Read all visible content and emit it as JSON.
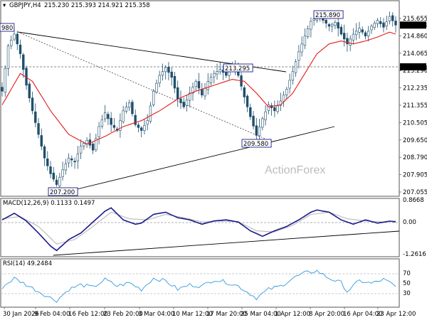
{
  "header": {
    "symbol": "GBPJPY,H4",
    "ohlc": "215.230 215.393 214.921 215.358"
  },
  "watermark": "ActionForex",
  "colors": {
    "candle": "#1f4e6b",
    "sma": "#e31b1b",
    "macd": "#1a1a8c",
    "signal": "#b8b8b8",
    "rsi": "#3399dd",
    "trend": "#000000",
    "frame": "#555555"
  },
  "chart_data": [
    {
      "type": "candlestick",
      "panel": "price",
      "ylim": [
        206.8,
        216.2
      ],
      "y_ticks": [
        "215.655",
        "214.860",
        "214.065",
        "213.290",
        "212.235",
        "211.355",
        "210.505",
        "209.650",
        "208.790",
        "207.905",
        "207.055"
      ],
      "price_label": "215.358",
      "hline_label": "213.290",
      "hline_value": 213.29,
      "x_labels": [
        "30 Jan 2026",
        "9 Feb 04:00",
        "16 Feb 12:00",
        "23 Feb 20:00",
        "3 Mar 04:00",
        "10 Mar 12:00",
        "17 Mar 20:00",
        "25 Mar 04:00",
        "1 Apr 12:00",
        "8 Apr 20:00",
        "16 Apr 04:00",
        "23 Apr 12:00"
      ],
      "annotations": [
        {
          "text": "980",
          "price": 214.98
        },
        {
          "text": "207.200",
          "price": 207.2
        },
        {
          "text": "213.295",
          "price": 213.295
        },
        {
          "text": "209.580",
          "price": 209.58
        },
        {
          "text": "215.890",
          "price": 215.89
        }
      ],
      "anchors": [
        [
          0,
          212.0
        ],
        [
          2,
          214.3
        ],
        [
          4,
          214.9
        ],
        [
          6,
          213.9
        ],
        [
          8,
          212.3
        ],
        [
          10,
          211.0
        ],
        [
          12,
          209.8
        ],
        [
          14,
          208.6
        ],
        [
          16,
          207.8
        ],
        [
          18,
          207.25
        ],
        [
          20,
          208.0
        ],
        [
          22,
          208.6
        ],
        [
          24,
          208.4
        ],
        [
          26,
          209.2
        ],
        [
          28,
          209.5
        ],
        [
          30,
          209.0
        ],
        [
          32,
          210.2
        ],
        [
          34,
          210.9
        ],
        [
          36,
          210.3
        ],
        [
          38,
          210.0
        ],
        [
          40,
          211.0
        ],
        [
          42,
          211.4
        ],
        [
          44,
          210.3
        ],
        [
          46,
          210.0
        ],
        [
          48,
          210.5
        ],
        [
          50,
          212.0
        ],
        [
          52,
          212.8
        ],
        [
          54,
          213.2
        ],
        [
          56,
          212.7
        ],
        [
          58,
          211.6
        ],
        [
          60,
          211.2
        ],
        [
          62,
          211.9
        ],
        [
          64,
          212.5
        ],
        [
          66,
          211.8
        ],
        [
          68,
          212.5
        ],
        [
          70,
          212.9
        ],
        [
          72,
          213.1
        ],
        [
          74,
          212.8
        ],
        [
          76,
          213.3
        ],
        [
          78,
          212.8
        ],
        [
          80,
          211.7
        ],
        [
          82,
          210.7
        ],
        [
          84,
          209.75
        ],
        [
          86,
          210.6
        ],
        [
          88,
          211.3
        ],
        [
          90,
          211.0
        ],
        [
          92,
          211.5
        ],
        [
          94,
          212.1
        ],
        [
          96,
          213.0
        ],
        [
          98,
          214.0
        ],
        [
          100,
          214.8
        ],
        [
          102,
          215.55
        ],
        [
          104,
          215.8
        ],
        [
          106,
          215.6
        ],
        [
          108,
          215.3
        ],
        [
          110,
          215.5
        ],
        [
          112,
          214.9
        ],
        [
          114,
          214.4
        ],
        [
          116,
          214.9
        ],
        [
          118,
          215.2
        ],
        [
          120,
          214.8
        ],
        [
          122,
          215.3
        ],
        [
          124,
          215.6
        ],
        [
          126,
          215.25
        ],
        [
          128,
          215.8
        ],
        [
          130,
          215.358
        ]
      ],
      "sma_anchors": [
        [
          0,
          211.3
        ],
        [
          6,
          212.9
        ],
        [
          10,
          212.5
        ],
        [
          16,
          211.0
        ],
        [
          22,
          209.8
        ],
        [
          28,
          209.3
        ],
        [
          34,
          209.7
        ],
        [
          40,
          210.2
        ],
        [
          46,
          210.5
        ],
        [
          52,
          211.0
        ],
        [
          58,
          211.6
        ],
        [
          64,
          212.0
        ],
        [
          70,
          212.3
        ],
        [
          76,
          212.6
        ],
        [
          80,
          212.5
        ],
        [
          84,
          211.9
        ],
        [
          88,
          211.2
        ],
        [
          92,
          211.3
        ],
        [
          96,
          211.9
        ],
        [
          100,
          212.9
        ],
        [
          104,
          213.9
        ],
        [
          108,
          214.4
        ],
        [
          112,
          214.55
        ],
        [
          116,
          214.4
        ],
        [
          120,
          214.55
        ],
        [
          124,
          214.75
        ],
        [
          128,
          215.0
        ],
        [
          130,
          214.9
        ]
      ]
    },
    {
      "type": "line",
      "panel": "macd",
      "title": "MACD(12,26,9) 0.1133 0.1497",
      "ylim": [
        -1.45,
        1.05
      ],
      "y_ticks": [
        "0.8668",
        "0.00",
        "-1.2616"
      ],
      "macd_anchors": [
        [
          0,
          0.2
        ],
        [
          4,
          0.5
        ],
        [
          8,
          0.15
        ],
        [
          12,
          -0.4
        ],
        [
          16,
          -1.0
        ],
        [
          18,
          -1.2
        ],
        [
          22,
          -0.7
        ],
        [
          26,
          -0.4
        ],
        [
          30,
          0.1
        ],
        [
          34,
          0.6
        ],
        [
          36,
          0.75
        ],
        [
          40,
          0.2
        ],
        [
          44,
          0.0
        ],
        [
          46,
          0.05
        ],
        [
          50,
          0.45
        ],
        [
          54,
          0.55
        ],
        [
          58,
          0.3
        ],
        [
          62,
          0.2
        ],
        [
          66,
          0.0
        ],
        [
          70,
          0.15
        ],
        [
          74,
          0.2
        ],
        [
          78,
          0.1
        ],
        [
          82,
          -0.3
        ],
        [
          86,
          -0.55
        ],
        [
          90,
          -0.3
        ],
        [
          94,
          -0.1
        ],
        [
          98,
          0.2
        ],
        [
          102,
          0.55
        ],
        [
          104,
          0.65
        ],
        [
          108,
          0.55
        ],
        [
          112,
          0.2
        ],
        [
          116,
          0.0
        ],
        [
          120,
          0.2
        ],
        [
          124,
          0.05
        ],
        [
          128,
          0.14
        ],
        [
          130,
          0.1133
        ]
      ],
      "signal_anchors": [
        [
          0,
          0.25
        ],
        [
          6,
          0.35
        ],
        [
          12,
          -0.1
        ],
        [
          18,
          -0.9
        ],
        [
          24,
          -0.7
        ],
        [
          30,
          -0.1
        ],
        [
          36,
          0.55
        ],
        [
          42,
          0.25
        ],
        [
          48,
          0.2
        ],
        [
          54,
          0.45
        ],
        [
          60,
          0.3
        ],
        [
          66,
          0.1
        ],
        [
          72,
          0.15
        ],
        [
          78,
          0.12
        ],
        [
          84,
          -0.3
        ],
        [
          90,
          -0.35
        ],
        [
          96,
          -0.05
        ],
        [
          102,
          0.45
        ],
        [
          108,
          0.55
        ],
        [
          114,
          0.25
        ],
        [
          120,
          0.15
        ],
        [
          126,
          0.1
        ],
        [
          130,
          0.1497
        ]
      ]
    },
    {
      "type": "line",
      "panel": "rsi",
      "title": "RSI(14) 49.2484",
      "ylim": [
        20,
        85
      ],
      "y_ticks": [
        "70",
        "50",
        "30"
      ],
      "rsi_anchors": [
        [
          0,
          48
        ],
        [
          4,
          62
        ],
        [
          8,
          52
        ],
        [
          12,
          42
        ],
        [
          16,
          32
        ],
        [
          18,
          28
        ],
        [
          22,
          45
        ],
        [
          26,
          52
        ],
        [
          30,
          48
        ],
        [
          34,
          60
        ],
        [
          38,
          50
        ],
        [
          42,
          55
        ],
        [
          46,
          45
        ],
        [
          50,
          62
        ],
        [
          54,
          58
        ],
        [
          58,
          45
        ],
        [
          62,
          52
        ],
        [
          66,
          50
        ],
        [
          70,
          60
        ],
        [
          74,
          56
        ],
        [
          78,
          50
        ],
        [
          82,
          38
        ],
        [
          84,
          32
        ],
        [
          88,
          45
        ],
        [
          92,
          50
        ],
        [
          96,
          62
        ],
        [
          100,
          70
        ],
        [
          104,
          73
        ],
        [
          108,
          62
        ],
        [
          112,
          55
        ],
        [
          114,
          42
        ],
        [
          118,
          58
        ],
        [
          122,
          54
        ],
        [
          126,
          60
        ],
        [
          128,
          55
        ],
        [
          130,
          49.25
        ]
      ]
    }
  ]
}
